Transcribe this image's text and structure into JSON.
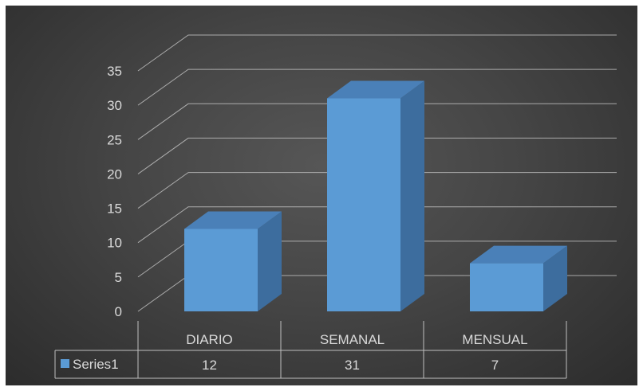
{
  "chart_data": {
    "type": "bar",
    "style": "3d-column-with-data-table",
    "categories": [
      "DIARIO",
      "SEMANAL",
      "MENSUAL"
    ],
    "series": [
      {
        "name": "Series1",
        "values": [
          12,
          31,
          7
        ],
        "color": "#5b9bd5"
      }
    ],
    "y_ticks": [
      "0",
      "5",
      "10",
      "15",
      "20",
      "25",
      "30",
      "35"
    ],
    "ylim": [
      0,
      35
    ],
    "grid": true,
    "legend": "data-table",
    "title": "",
    "xlabel": "",
    "ylabel": ""
  },
  "colors": {
    "background": "#3b3b3b",
    "grid": "#bdbdbd",
    "text": "#d9d9d9",
    "bar_front": "#5b9bd5",
    "bar_side": "#3d6d9e",
    "bar_top": "#4a80b8"
  }
}
